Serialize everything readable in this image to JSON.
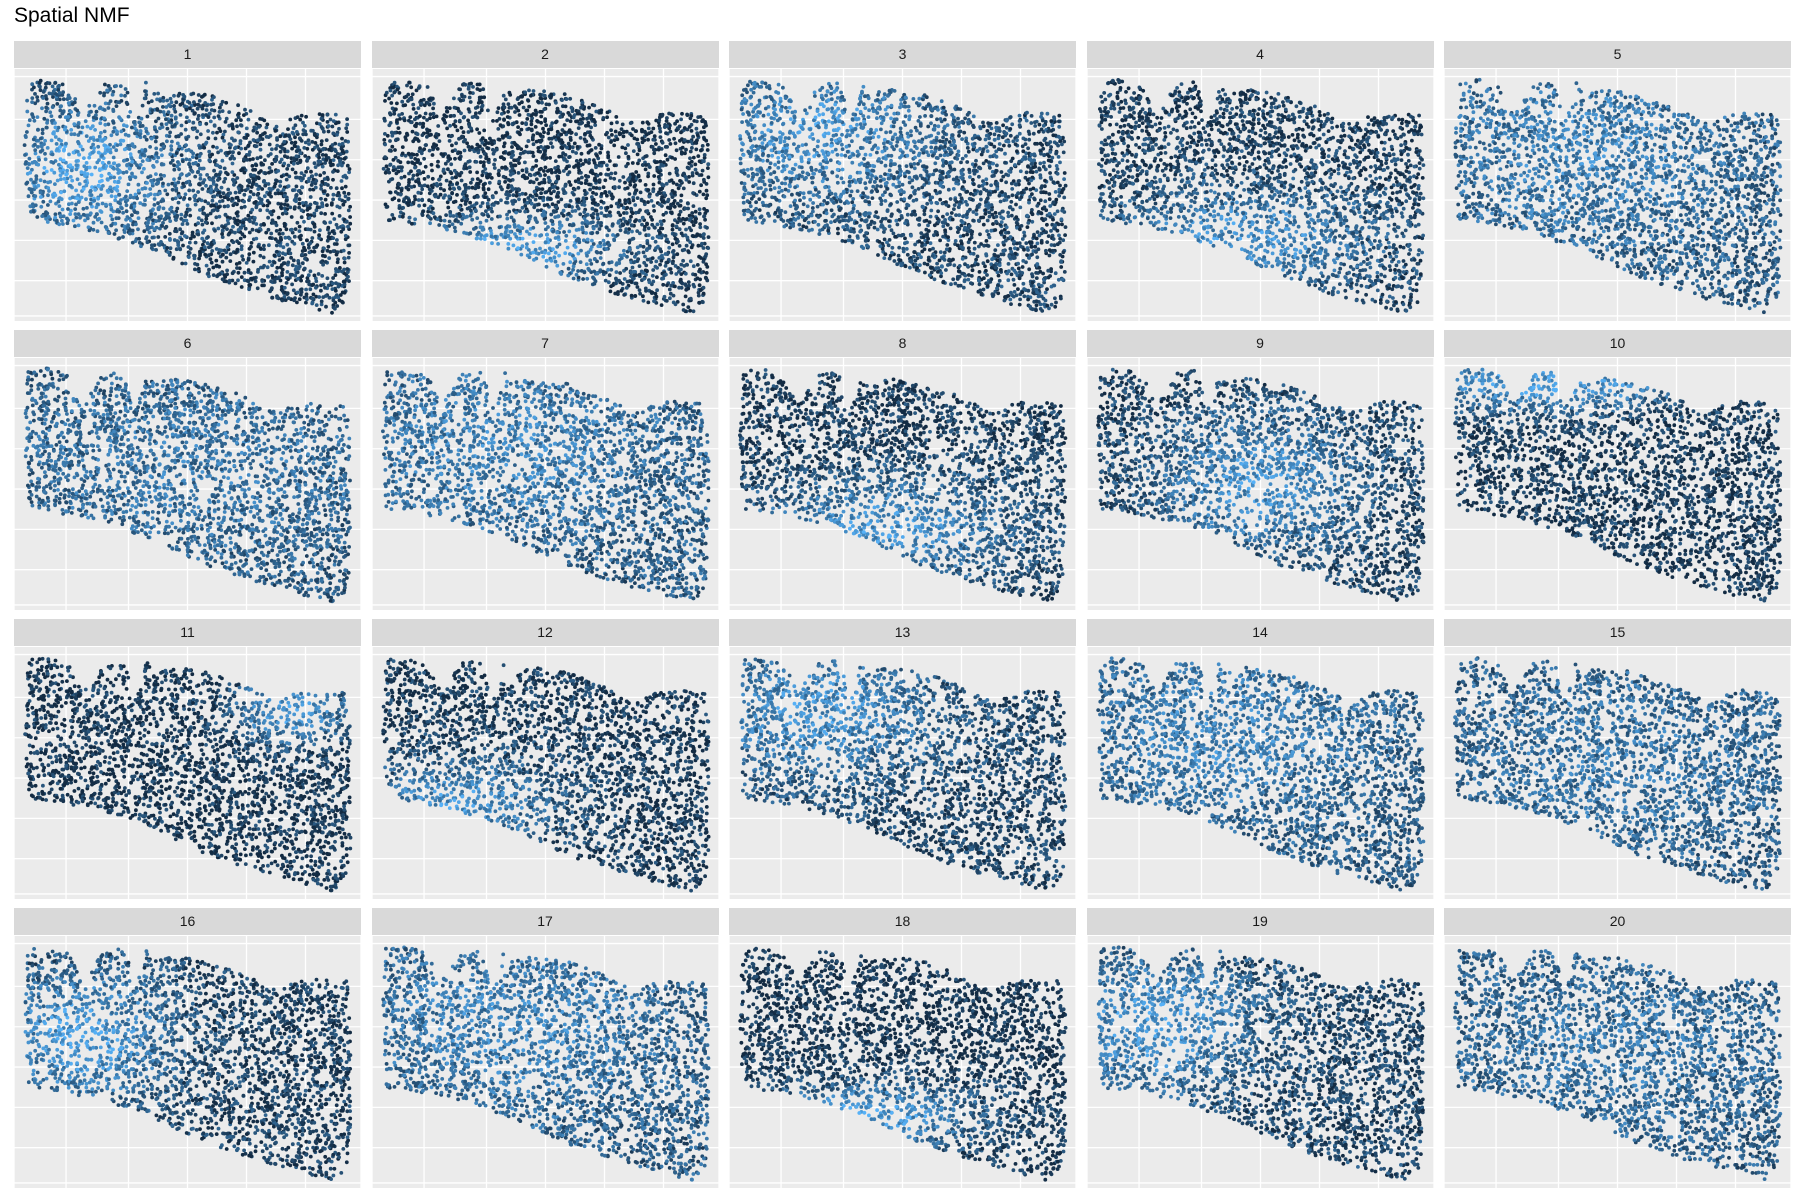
{
  "chart_data": {
    "type": "scatter",
    "title": "Spatial NMF",
    "panel_layout": "5 columns x 4 rows (facet_wrap)",
    "panels": [
      {
        "label": "1",
        "pattern": "left-mid"
      },
      {
        "label": "2",
        "pattern": "bottom"
      },
      {
        "label": "3",
        "pattern": "top-left"
      },
      {
        "label": "4",
        "pattern": "bottom-mid"
      },
      {
        "label": "5",
        "pattern": "upper-diffuse"
      },
      {
        "label": "6",
        "pattern": "diffuse"
      },
      {
        "label": "7",
        "pattern": "upper-diffuse"
      },
      {
        "label": "8",
        "pattern": "bottom-mid"
      },
      {
        "label": "9",
        "pattern": "center"
      },
      {
        "label": "10",
        "pattern": "top-edge"
      },
      {
        "label": "11",
        "pattern": "top-right"
      },
      {
        "label": "12",
        "pattern": "bottom-left"
      },
      {
        "label": "13",
        "pattern": "top-left"
      },
      {
        "label": "14",
        "pattern": "upper-diffuse"
      },
      {
        "label": "15",
        "pattern": "diffuse"
      },
      {
        "label": "16",
        "pattern": "left-mid"
      },
      {
        "label": "17",
        "pattern": "upper-diffuse"
      },
      {
        "label": "18",
        "pattern": "bottom"
      },
      {
        "label": "19",
        "pattern": "upper-left"
      },
      {
        "label": "20",
        "pattern": "diffuse"
      }
    ],
    "color_scale": {
      "low": "#132B43",
      "high": "#56B1F7"
    },
    "panel_background": "#ebebeb",
    "strip_background": "#d9d9d9",
    "grid": true,
    "axis_text": false
  }
}
